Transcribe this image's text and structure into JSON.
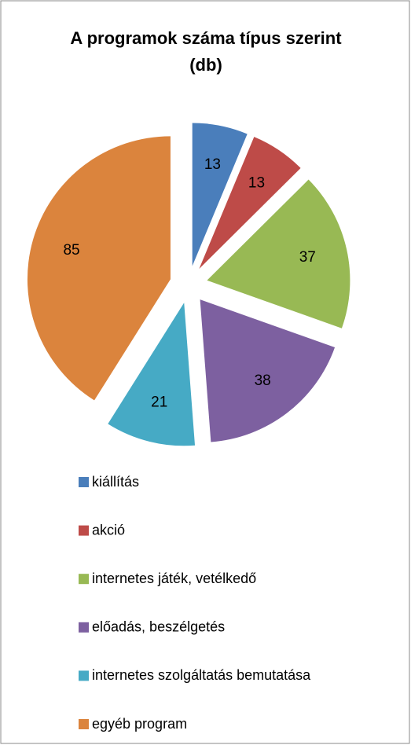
{
  "chart_data": {
    "type": "pie",
    "title": "A programok száma típus szerint (db)",
    "categories": [
      "kiállítás",
      "akció",
      "internetes játék, vetélkedő",
      "előadás, beszélgetés",
      "internetes szolgáltatás bemutatása",
      "egyéb program"
    ],
    "values": [
      13,
      13,
      37,
      38,
      21,
      85
    ],
    "colors": [
      "#4A7EBB",
      "#BE4B48",
      "#98B954",
      "#7D60A0",
      "#46AAC5",
      "#DB843D"
    ],
    "legend": "bottom"
  }
}
